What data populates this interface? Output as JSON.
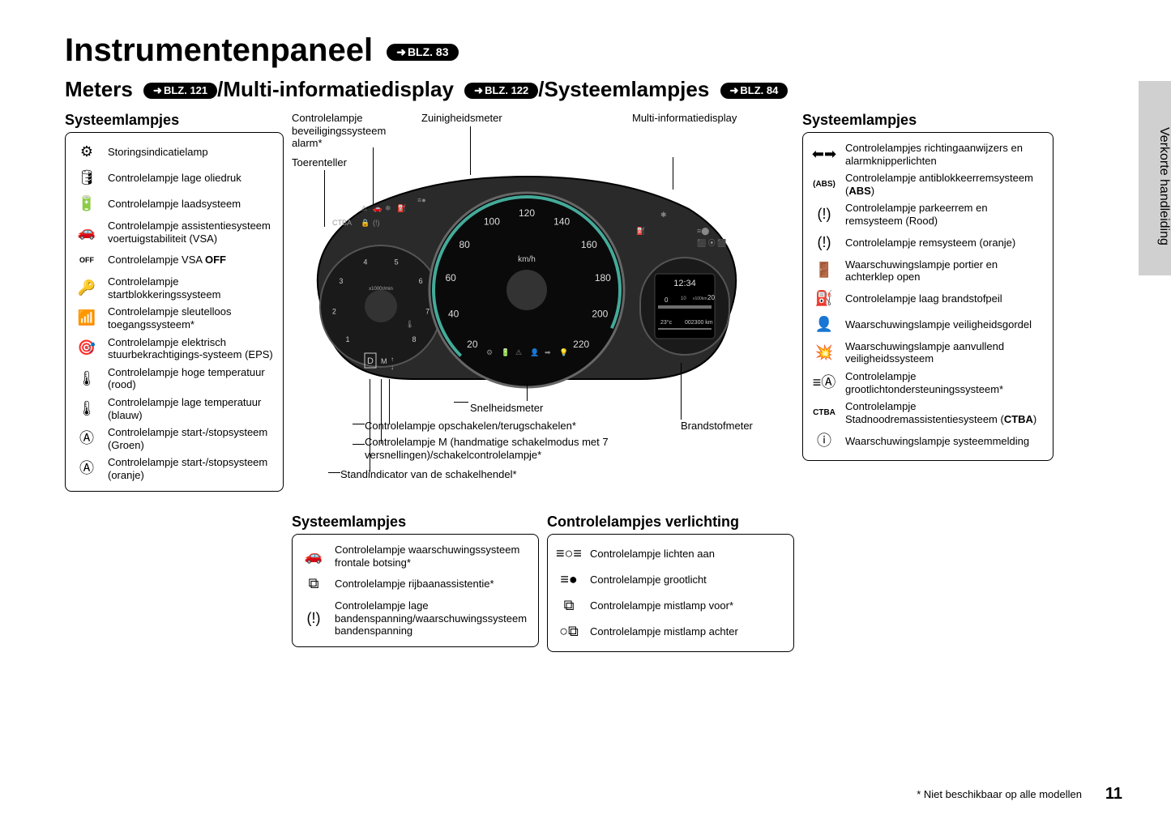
{
  "sideTab": "Verkorte handleiding",
  "title": "Instrumentenpaneel",
  "titleRef": "BLZ. 83",
  "subtitle": {
    "part1": "Meters ",
    "ref1": "BLZ. 121",
    "part2": "/Multi-informatiedisplay ",
    "ref2": "BLZ. 122",
    "part3": "/Systeemlampjes ",
    "ref3": "BLZ. 84"
  },
  "leftPanel": {
    "title": "Systeemlampjes",
    "items": [
      {
        "icon": "engine",
        "text": "Storingsindicatielamp"
      },
      {
        "icon": "oil",
        "text": "Controlelampje lage oliedruk"
      },
      {
        "icon": "battery",
        "text": "Controlelampje laadsysteem"
      },
      {
        "icon": "vsa",
        "text": "Controlelampje assistentiesysteem voertuigstabiliteit (VSA)"
      },
      {
        "icon": "vsa-off",
        "text": "Controlelampje VSA OFF"
      },
      {
        "icon": "immobilizer",
        "text": "Controlelampje startblokkeringssysteem"
      },
      {
        "icon": "keyless",
        "text": "Controlelampje sleutelloos toegangssysteem*"
      },
      {
        "icon": "eps",
        "text": "Controlelampje elektrisch stuurbekrachtigings-systeem (EPS)"
      },
      {
        "icon": "temp-high",
        "text": "Controlelampje hoge temperatuur (rood)"
      },
      {
        "icon": "temp-low",
        "text": "Controlelampje lage temperatuur (blauw)"
      },
      {
        "icon": "start-stop-green",
        "text": "Controlelampje start-/stopsysteem (Groen)"
      },
      {
        "icon": "start-stop-orange",
        "text": "Controlelampje start-/stopsysteem (oranje)"
      }
    ]
  },
  "rightPanel": {
    "title": "Systeemlampjes",
    "items": [
      {
        "icon": "turn-signal",
        "text": "Controlelampjes richtingaanwijzers en alarmknipperlichten"
      },
      {
        "icon": "abs",
        "text": "Controlelampje antiblokkeerremsysteem (ABS)"
      },
      {
        "icon": "brake-red",
        "text": "Controlelampje parkeerrem en remsysteem (Rood)"
      },
      {
        "icon": "brake-orange",
        "text": "Controlelampje remsysteem (oranje)"
      },
      {
        "icon": "door",
        "text": "Waarschuwingslampje portier en achterklep open"
      },
      {
        "icon": "fuel",
        "text": "Controlelampje laag brandstofpeil"
      },
      {
        "icon": "seatbelt",
        "text": "Waarschuwingslampje veiligheidsgordel"
      },
      {
        "icon": "airbag",
        "text": "Waarschuwingslampje aanvullend veiligheidssysteem"
      },
      {
        "icon": "high-beam-assist",
        "text": "Controlelampje grootlichtondersteuningssysteem*"
      },
      {
        "icon": "ctba",
        "text": "Controlelampje Stadnoodremassistentiesysteem (CTBA)"
      },
      {
        "icon": "info",
        "text": "Waarschuwingslampje systeemmelding"
      }
    ]
  },
  "midBottomLeft": {
    "title": "Systeemlampjes",
    "items": [
      {
        "icon": "collision",
        "text": "Controlelampje waarschuwingssysteem frontale botsing*"
      },
      {
        "icon": "lane",
        "text": "Controlelampje rijbaanassistentie*"
      },
      {
        "icon": "tire",
        "text": "Controlelampje lage bandenspanning/waarschuwingssysteem bandenspanning"
      }
    ]
  },
  "midBottomRight": {
    "title": "Controlelampjes verlichting",
    "items": [
      {
        "icon": "lights-on",
        "text": "Controlelampje lichten aan"
      },
      {
        "icon": "high-beam",
        "text": "Controlelampje grootlicht"
      },
      {
        "icon": "fog-front",
        "text": "Controlelampje mistlamp voor*"
      },
      {
        "icon": "fog-rear",
        "text": "Controlelampje mistlamp achter"
      }
    ]
  },
  "callouts": {
    "c1": "Controlelampje beveiligingssysteem alarm*",
    "c2": "Zuinigheidsmeter",
    "c3": "Multi-informatiedisplay",
    "c4": "Toerenteller",
    "c5": "Snelheidsmeter",
    "c6": "Controlelampje opschakelen/terugschakelen*",
    "c7": "Brandstofmeter",
    "c8": "Controlelampje M (handmatige schakelmodus met 7 versnellingen)/schakelcontrolelampje*",
    "c9": "Standindicator van de schakelhendel*"
  },
  "cluster": {
    "speedUnit": "km/h",
    "speedTicks": [
      "20",
      "40",
      "60",
      "80",
      "100",
      "120",
      "140",
      "160",
      "180",
      "200",
      "220"
    ],
    "tachTicks": [
      "1",
      "2",
      "3",
      "4",
      "5",
      "6",
      "7",
      "8"
    ],
    "tachLabel": "x1000r/min",
    "time": "12:34",
    "odoA": "10",
    "odoB": "20",
    "odoUnit": "v100km",
    "temp": "23°c",
    "odo": "002300 km",
    "ctba": "CTBA"
  },
  "footnote": "* Niet beschikbaar op alle modellen",
  "pageNum": "11"
}
